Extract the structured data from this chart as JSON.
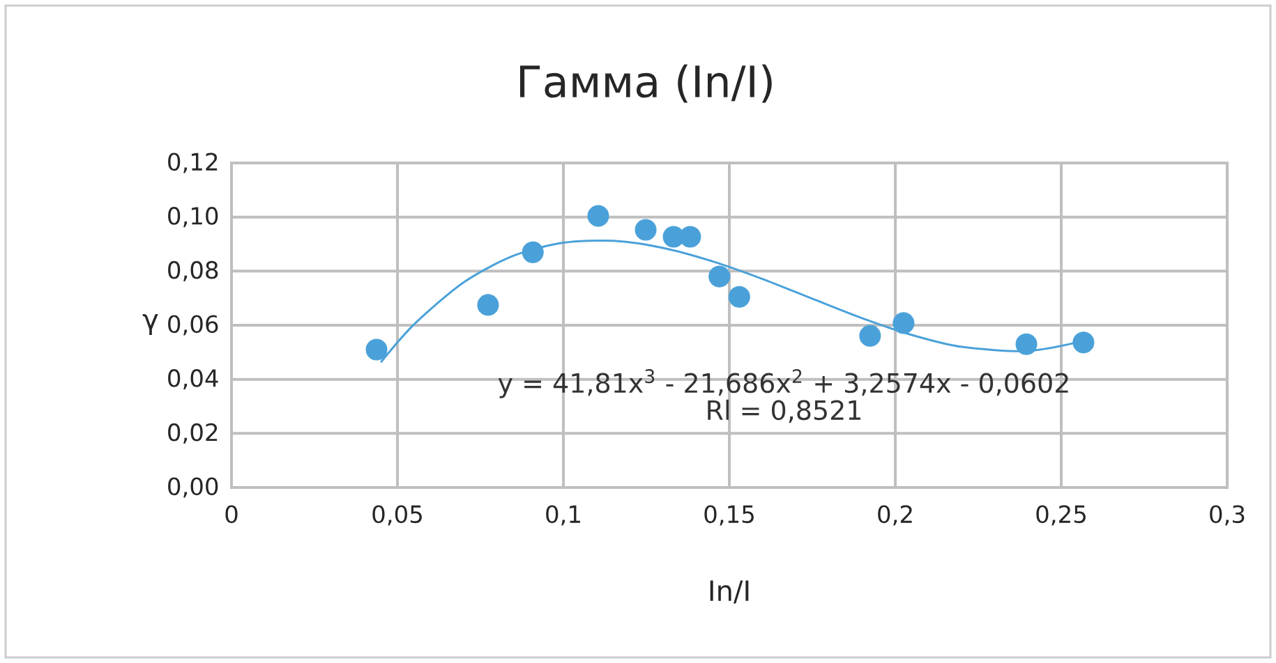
{
  "chart_data": {
    "type": "scatter",
    "title": "Гамма (In/I)",
    "xlabel": "In/I",
    "ylabel": "γ",
    "xlim": [
      0,
      0.3
    ],
    "ylim": [
      0,
      0.12
    ],
    "xticks": [
      0,
      {
        "value": 0.05,
        "label": "0,05"
      },
      {
        "value": 0.1,
        "label": "0,1"
      },
      {
        "value": 0.15,
        "label": "0,15"
      },
      {
        "value": 0.2,
        "label": "0,2"
      },
      {
        "value": 0.25,
        "label": "0,25"
      },
      {
        "value": 0.3,
        "label": "0,3"
      }
    ],
    "yticks": [
      {
        "value": 0,
        "label": "0,00"
      },
      {
        "value": 0.02,
        "label": "0,02"
      },
      {
        "value": 0.04,
        "label": "0,04"
      },
      {
        "value": 0.06,
        "label": "0,06"
      },
      {
        "value": 0.08,
        "label": "0,08"
      },
      {
        "value": 0.1,
        "label": "0,10"
      },
      {
        "value": 0.12,
        "label": "0,12"
      }
    ],
    "grid": true,
    "series": [
      {
        "marker": "circle",
        "color": "#4aa1d9",
        "x": [
          0.0437,
          0.0773,
          0.0908,
          0.1105,
          0.1248,
          0.1332,
          0.1382,
          0.147,
          0.153,
          0.1924,
          0.2025,
          0.2395,
          0.2567
        ],
        "values": [
          0.051,
          0.0675,
          0.087,
          0.1004,
          0.0953,
          0.0927,
          0.0927,
          0.078,
          0.0705,
          0.0561,
          0.0608,
          0.053,
          0.0536
        ]
      },
      {
        "type": "line",
        "marker": "none",
        "color": "#4aa1d9",
        "x": [
          0.045,
          0.055,
          0.07,
          0.085,
          0.1,
          0.115,
          0.13,
          0.145,
          0.16,
          0.175,
          0.19,
          0.205,
          0.22,
          0.24,
          0.257
        ],
        "values": [
          0.0463,
          0.0603,
          0.0759,
          0.0857,
          0.0905,
          0.0912,
          0.0886,
          0.0836,
          0.0771,
          0.0698,
          0.0626,
          0.0564,
          0.052,
          0.0505,
          0.0543
        ]
      }
    ],
    "annotations": [
      "y = 41,81x$^{3}$ - 21,686x$^{2}$ + 3,2574x - 0,0602",
      "Rl = 0,8521"
    ]
  }
}
